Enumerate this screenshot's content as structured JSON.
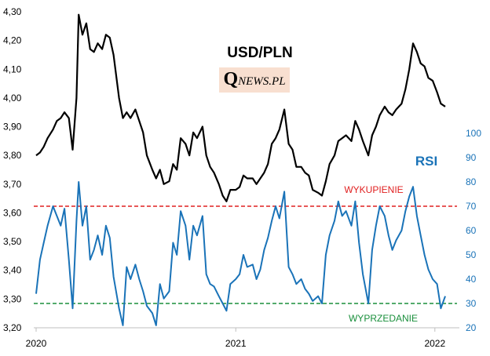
{
  "chart_data": {
    "type": "line",
    "title": "USD/PLN",
    "colors": {
      "price": "#000000",
      "rsi": "#1a73b8",
      "overbought": "#e02020",
      "oversold": "#1a8f3c"
    },
    "x_axis": {
      "ticks": [
        "2020",
        "2021",
        "2022"
      ],
      "range": [
        "2020-01-01",
        "2022-01-20"
      ]
    },
    "y_left": {
      "ticks": [
        "4,30",
        "4,20",
        "4,10",
        "4,00",
        "3,90",
        "3,80",
        "3,70",
        "3,60",
        "3,50",
        "3,40",
        "3,30",
        "3,20"
      ],
      "range": [
        3.2,
        4.3
      ]
    },
    "y_right": {
      "ticks": [
        "100",
        "90",
        "80",
        "70",
        "60",
        "50",
        "40",
        "30",
        "20"
      ],
      "range": [
        20,
        100
      ]
    },
    "grid": false,
    "legend": "none",
    "annotations": {
      "overbought_label": "WYKUPIENIE",
      "oversold_label": "WYPRZEDANIE",
      "rsi_label": "RSI",
      "overbought_level": 70,
      "oversold_level": 30
    },
    "logo": {
      "q": "Q",
      "rest": "NEWS.PL"
    },
    "series": [
      {
        "name": "USD/PLN",
        "axis": "left",
        "points": [
          [
            "2020-01-01",
            3.8
          ],
          [
            "2020-01-08",
            3.81
          ],
          [
            "2020-01-15",
            3.83
          ],
          [
            "2020-01-22",
            3.86
          ],
          [
            "2020-02-01",
            3.89
          ],
          [
            "2020-02-08",
            3.92
          ],
          [
            "2020-02-15",
            3.93
          ],
          [
            "2020-02-22",
            3.95
          ],
          [
            "2020-03-01",
            3.93
          ],
          [
            "2020-03-08",
            3.82
          ],
          [
            "2020-03-15",
            4.0
          ],
          [
            "2020-03-19",
            4.29
          ],
          [
            "2020-03-26",
            4.22
          ],
          [
            "2020-04-02",
            4.26
          ],
          [
            "2020-04-09",
            4.17
          ],
          [
            "2020-04-16",
            4.16
          ],
          [
            "2020-04-23",
            4.19
          ],
          [
            "2020-05-01",
            4.17
          ],
          [
            "2020-05-08",
            4.22
          ],
          [
            "2020-05-15",
            4.21
          ],
          [
            "2020-05-22",
            4.15
          ],
          [
            "2020-06-01",
            4.0
          ],
          [
            "2020-06-08",
            3.93
          ],
          [
            "2020-06-15",
            3.95
          ],
          [
            "2020-06-22",
            3.93
          ],
          [
            "2020-07-01",
            3.96
          ],
          [
            "2020-07-08",
            3.92
          ],
          [
            "2020-07-15",
            3.88
          ],
          [
            "2020-07-22",
            3.8
          ],
          [
            "2020-08-01",
            3.75
          ],
          [
            "2020-08-08",
            3.72
          ],
          [
            "2020-08-15",
            3.75
          ],
          [
            "2020-08-22",
            3.7
          ],
          [
            "2020-09-01",
            3.71
          ],
          [
            "2020-09-08",
            3.77
          ],
          [
            "2020-09-15",
            3.75
          ],
          [
            "2020-09-22",
            3.86
          ],
          [
            "2020-10-01",
            3.84
          ],
          [
            "2020-10-08",
            3.8
          ],
          [
            "2020-10-15",
            3.88
          ],
          [
            "2020-10-22",
            3.86
          ],
          [
            "2020-11-01",
            3.9
          ],
          [
            "2020-11-08",
            3.8
          ],
          [
            "2020-11-15",
            3.76
          ],
          [
            "2020-11-22",
            3.74
          ],
          [
            "2020-12-01",
            3.7
          ],
          [
            "2020-12-08",
            3.66
          ],
          [
            "2020-12-15",
            3.64
          ],
          [
            "2020-12-22",
            3.68
          ],
          [
            "2021-01-01",
            3.68
          ],
          [
            "2021-01-08",
            3.69
          ],
          [
            "2021-01-15",
            3.73
          ],
          [
            "2021-01-22",
            3.72
          ],
          [
            "2021-02-01",
            3.72
          ],
          [
            "2021-02-08",
            3.7
          ],
          [
            "2021-02-15",
            3.72
          ],
          [
            "2021-02-22",
            3.74
          ],
          [
            "2021-03-01",
            3.77
          ],
          [
            "2021-03-08",
            3.84
          ],
          [
            "2021-03-15",
            3.86
          ],
          [
            "2021-03-22",
            3.89
          ],
          [
            "2021-03-31",
            3.96
          ],
          [
            "2021-04-08",
            3.84
          ],
          [
            "2021-04-15",
            3.82
          ],
          [
            "2021-04-22",
            3.76
          ],
          [
            "2021-05-01",
            3.76
          ],
          [
            "2021-05-08",
            3.74
          ],
          [
            "2021-05-15",
            3.73
          ],
          [
            "2021-05-22",
            3.68
          ],
          [
            "2021-06-01",
            3.67
          ],
          [
            "2021-06-08",
            3.66
          ],
          [
            "2021-06-15",
            3.71
          ],
          [
            "2021-06-22",
            3.77
          ],
          [
            "2021-07-01",
            3.8
          ],
          [
            "2021-07-08",
            3.85
          ],
          [
            "2021-07-15",
            3.86
          ],
          [
            "2021-07-22",
            3.87
          ],
          [
            "2021-08-01",
            3.85
          ],
          [
            "2021-08-08",
            3.92
          ],
          [
            "2021-08-15",
            3.89
          ],
          [
            "2021-08-22",
            3.85
          ],
          [
            "2021-09-01",
            3.8
          ],
          [
            "2021-09-08",
            3.87
          ],
          [
            "2021-09-15",
            3.9
          ],
          [
            "2021-09-22",
            3.94
          ],
          [
            "2021-10-01",
            3.97
          ],
          [
            "2021-10-08",
            3.95
          ],
          [
            "2021-10-15",
            3.94
          ],
          [
            "2021-10-22",
            3.96
          ],
          [
            "2021-11-01",
            3.98
          ],
          [
            "2021-11-08",
            4.03
          ],
          [
            "2021-11-15",
            4.1
          ],
          [
            "2021-11-22",
            4.19
          ],
          [
            "2021-11-29",
            4.16
          ],
          [
            "2021-12-06",
            4.12
          ],
          [
            "2021-12-13",
            4.11
          ],
          [
            "2021-12-20",
            4.07
          ],
          [
            "2021-12-28",
            4.06
          ],
          [
            "2022-01-05",
            4.02
          ],
          [
            "2022-01-12",
            3.98
          ],
          [
            "2022-01-20",
            3.97
          ]
        ]
      },
      {
        "name": "RSI",
        "axis": "right",
        "points": [
          [
            "2020-01-01",
            34
          ],
          [
            "2020-01-08",
            48
          ],
          [
            "2020-01-15",
            55
          ],
          [
            "2020-01-22",
            62
          ],
          [
            "2020-02-01",
            70
          ],
          [
            "2020-02-08",
            66
          ],
          [
            "2020-02-15",
            62
          ],
          [
            "2020-02-22",
            69
          ],
          [
            "2020-03-01",
            48
          ],
          [
            "2020-03-08",
            28
          ],
          [
            "2020-03-15",
            64
          ],
          [
            "2020-03-19",
            80
          ],
          [
            "2020-03-26",
            62
          ],
          [
            "2020-04-02",
            70
          ],
          [
            "2020-04-09",
            48
          ],
          [
            "2020-04-16",
            52
          ],
          [
            "2020-04-23",
            58
          ],
          [
            "2020-05-01",
            50
          ],
          [
            "2020-05-08",
            62
          ],
          [
            "2020-05-15",
            57
          ],
          [
            "2020-05-22",
            41
          ],
          [
            "2020-06-01",
            28
          ],
          [
            "2020-06-08",
            21
          ],
          [
            "2020-06-15",
            45
          ],
          [
            "2020-06-22",
            40
          ],
          [
            "2020-07-01",
            46
          ],
          [
            "2020-07-08",
            40
          ],
          [
            "2020-07-15",
            35
          ],
          [
            "2020-07-22",
            29
          ],
          [
            "2020-08-01",
            26
          ],
          [
            "2020-08-08",
            21
          ],
          [
            "2020-08-15",
            38
          ],
          [
            "2020-08-22",
            32
          ],
          [
            "2020-09-01",
            35
          ],
          [
            "2020-09-08",
            55
          ],
          [
            "2020-09-15",
            50
          ],
          [
            "2020-09-22",
            68
          ],
          [
            "2020-10-01",
            62
          ],
          [
            "2020-10-08",
            48
          ],
          [
            "2020-10-15",
            62
          ],
          [
            "2020-10-22",
            58
          ],
          [
            "2020-11-01",
            66
          ],
          [
            "2020-11-08",
            42
          ],
          [
            "2020-11-15",
            38
          ],
          [
            "2020-11-22",
            37
          ],
          [
            "2020-12-01",
            33
          ],
          [
            "2020-12-08",
            30
          ],
          [
            "2020-12-15",
            27
          ],
          [
            "2020-12-22",
            38
          ],
          [
            "2021-01-01",
            40
          ],
          [
            "2021-01-08",
            42
          ],
          [
            "2021-01-15",
            50
          ],
          [
            "2021-01-22",
            45
          ],
          [
            "2021-02-01",
            46
          ],
          [
            "2021-02-08",
            40
          ],
          [
            "2021-02-15",
            44
          ],
          [
            "2021-02-22",
            52
          ],
          [
            "2021-03-01",
            57
          ],
          [
            "2021-03-08",
            64
          ],
          [
            "2021-03-15",
            70
          ],
          [
            "2021-03-22",
            65
          ],
          [
            "2021-03-31",
            76
          ],
          [
            "2021-04-08",
            45
          ],
          [
            "2021-04-15",
            42
          ],
          [
            "2021-04-22",
            38
          ],
          [
            "2021-05-01",
            40
          ],
          [
            "2021-05-08",
            36
          ],
          [
            "2021-05-15",
            34
          ],
          [
            "2021-05-22",
            31
          ],
          [
            "2021-06-01",
            33
          ],
          [
            "2021-06-08",
            30
          ],
          [
            "2021-06-15",
            50
          ],
          [
            "2021-06-22",
            58
          ],
          [
            "2021-07-01",
            64
          ],
          [
            "2021-07-08",
            72
          ],
          [
            "2021-07-15",
            66
          ],
          [
            "2021-07-22",
            68
          ],
          [
            "2021-08-01",
            62
          ],
          [
            "2021-08-08",
            72
          ],
          [
            "2021-08-15",
            55
          ],
          [
            "2021-08-22",
            42
          ],
          [
            "2021-09-01",
            30
          ],
          [
            "2021-09-08",
            52
          ],
          [
            "2021-09-15",
            62
          ],
          [
            "2021-09-22",
            70
          ],
          [
            "2021-10-01",
            66
          ],
          [
            "2021-10-08",
            58
          ],
          [
            "2021-10-15",
            52
          ],
          [
            "2021-10-22",
            56
          ],
          [
            "2021-11-01",
            60
          ],
          [
            "2021-11-08",
            68
          ],
          [
            "2021-11-15",
            74
          ],
          [
            "2021-11-22",
            78
          ],
          [
            "2021-11-29",
            66
          ],
          [
            "2021-12-06",
            58
          ],
          [
            "2021-12-13",
            50
          ],
          [
            "2021-12-20",
            44
          ],
          [
            "2021-12-28",
            40
          ],
          [
            "2022-01-05",
            38
          ],
          [
            "2022-01-12",
            28
          ],
          [
            "2022-01-20",
            33
          ]
        ]
      }
    ]
  }
}
